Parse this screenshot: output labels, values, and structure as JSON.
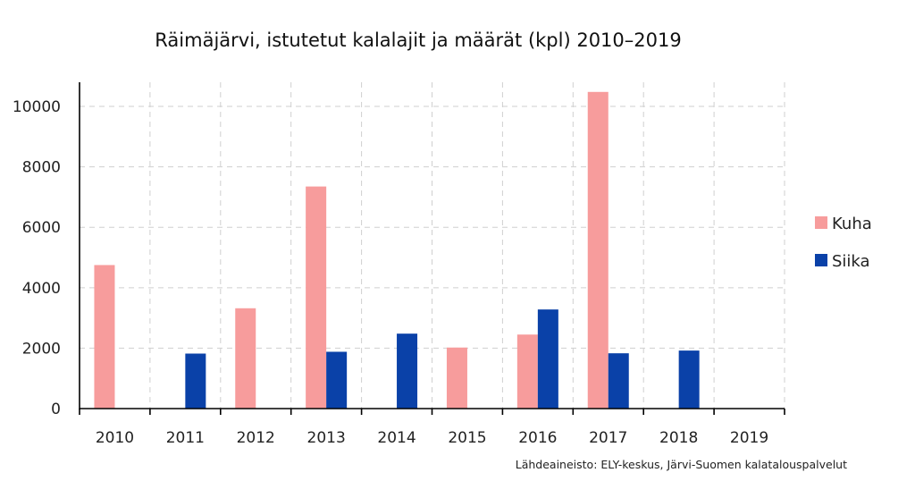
{
  "chart_data": {
    "type": "bar",
    "title": "Räimäjärvi, istutetut kalalajit ja määrät (kpl) 2010–2019",
    "xlabel": "",
    "ylabel": "",
    "categories": [
      "2010",
      "2011",
      "2012",
      "2013",
      "2014",
      "2015",
      "2016",
      "2017",
      "2018",
      "2019"
    ],
    "series": [
      {
        "name": "Kuha",
        "color": "#f79c9c",
        "values": [
          4750,
          null,
          3320,
          7350,
          null,
          2020,
          2450,
          10480,
          null,
          null
        ]
      },
      {
        "name": "Siika",
        "color": "#0a41a8",
        "values": [
          null,
          1820,
          null,
          1880,
          2480,
          null,
          3280,
          1830,
          1920,
          null
        ]
      }
    ],
    "ylim": [
      0,
      10800
    ],
    "yticks": [
      0,
      2000,
      4000,
      6000,
      8000,
      10000
    ],
    "ytick_labels": [
      "0",
      "2000",
      "4000",
      "6000",
      "8000",
      "10000"
    ],
    "grid": true,
    "legend_position": "right",
    "source": "Lähdeaineisto: ELY-keskus, Järvi-Suomen kalatalouspalvelut"
  }
}
